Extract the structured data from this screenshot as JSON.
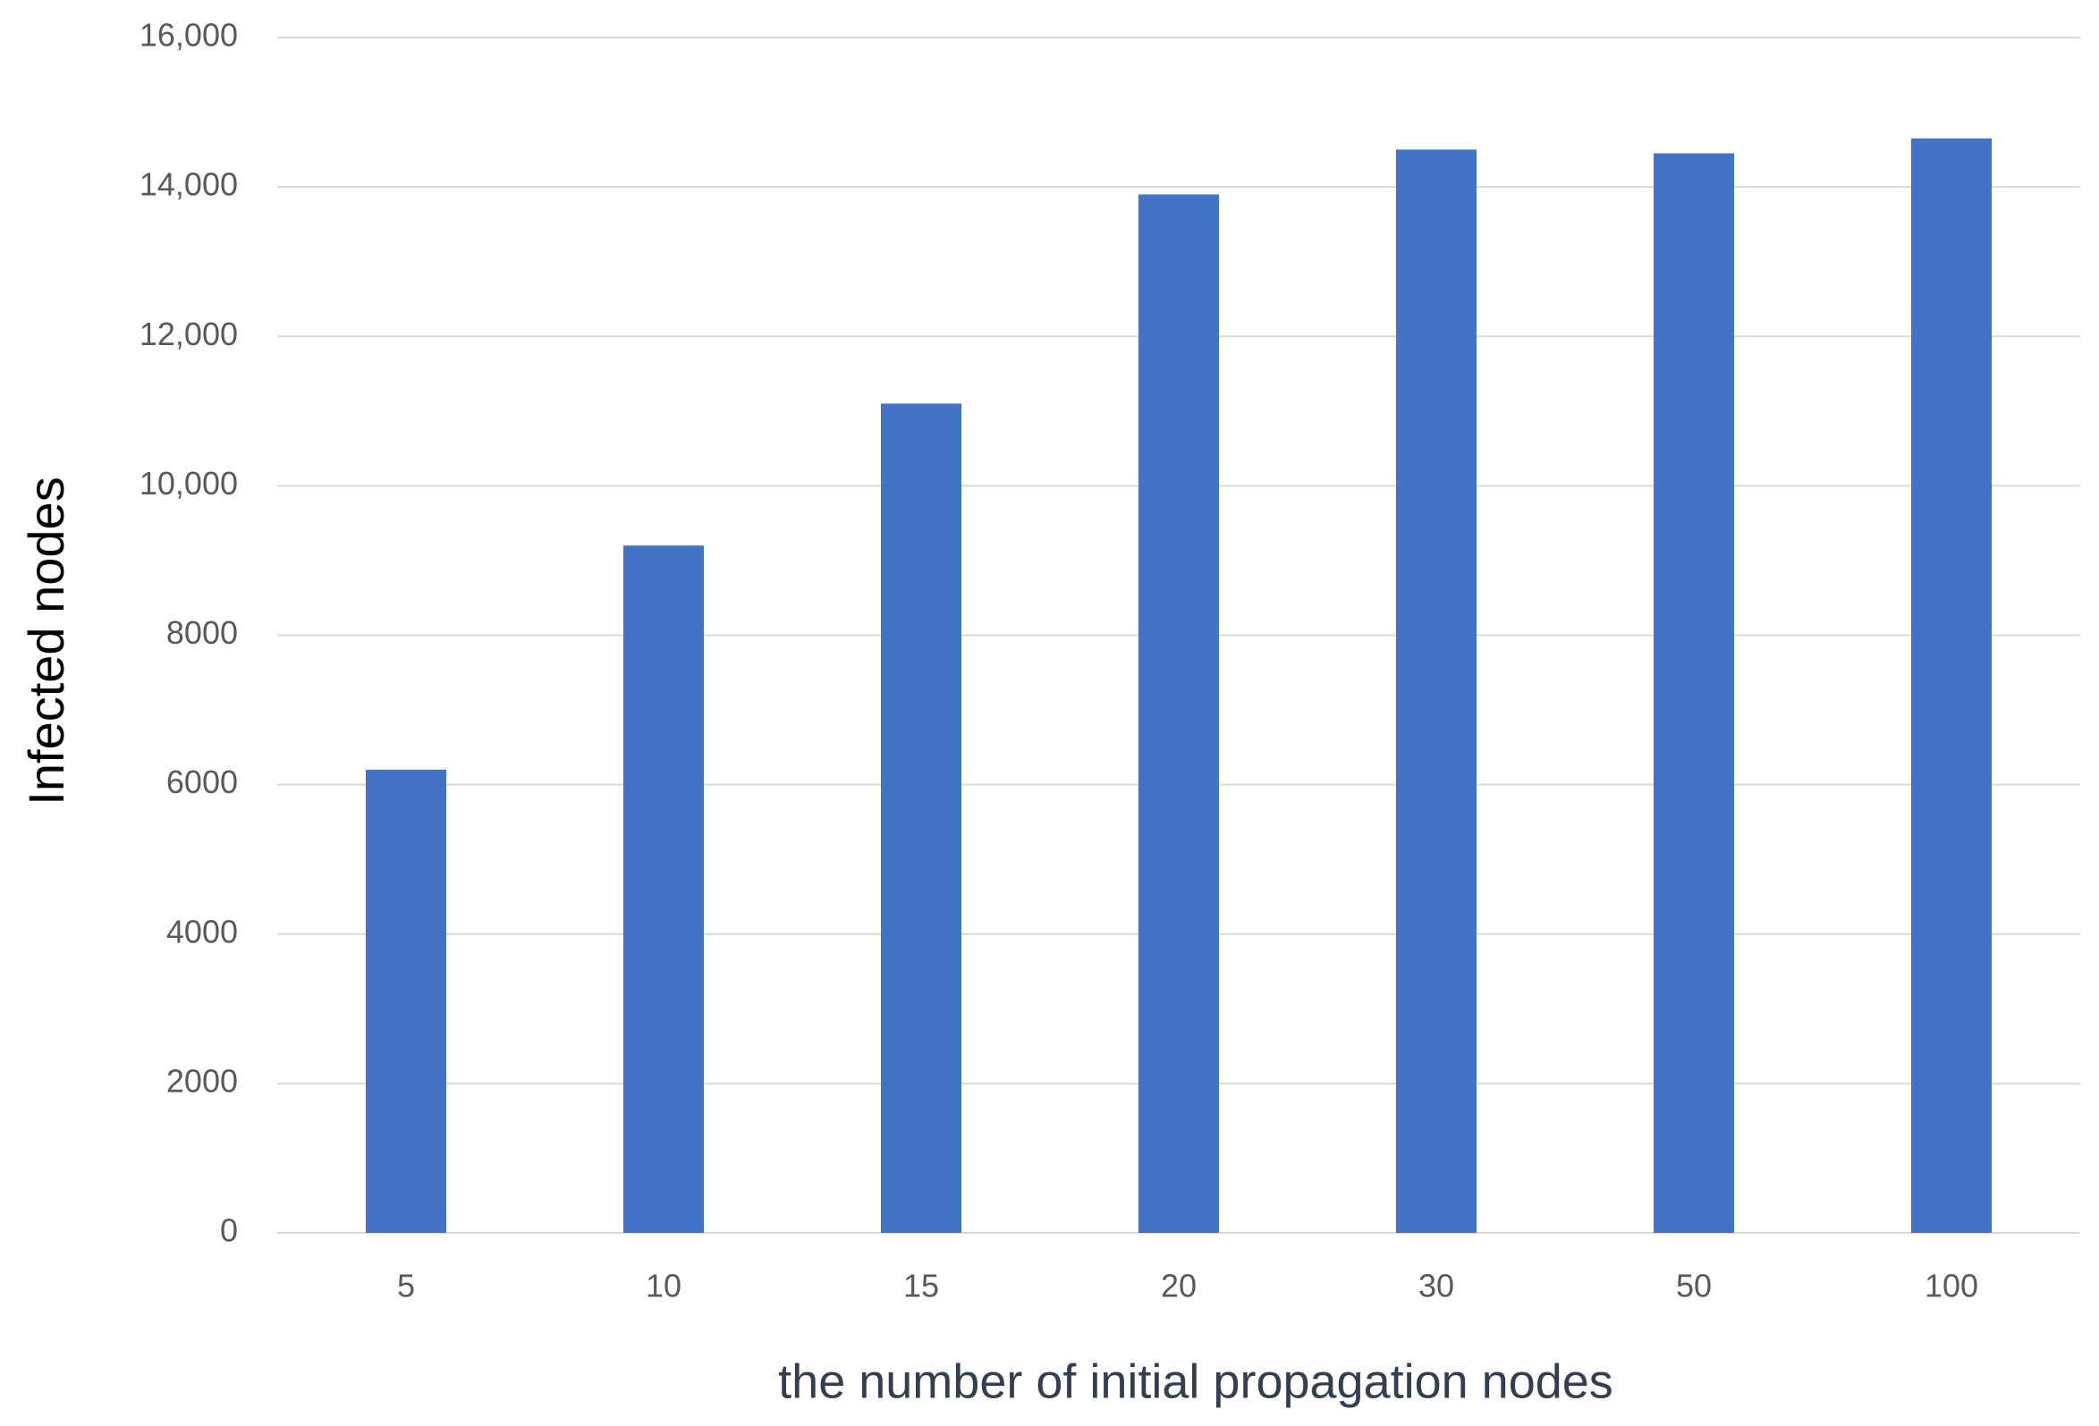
{
  "chart_data": {
    "type": "bar",
    "x_label": "the number of initial propagation nodes",
    "y_label": "Infected nodes",
    "categories": [
      "5",
      "10",
      "15",
      "20",
      "30",
      "50",
      "100"
    ],
    "values": [
      6200,
      9200,
      11100,
      13900,
      14500,
      14450,
      14650
    ],
    "color": "#4472c4",
    "ylim": [
      0,
      16000
    ],
    "yticks": [
      0,
      2000,
      4000,
      6000,
      8000,
      {
        "value": 10000,
        "label": "10,000"
      },
      {
        "value": 12000,
        "label": "12,000"
      },
      {
        "value": 14000,
        "label": "14,000"
      },
      {
        "value": 16000,
        "label": "16,000"
      }
    ],
    "grid": true
  }
}
